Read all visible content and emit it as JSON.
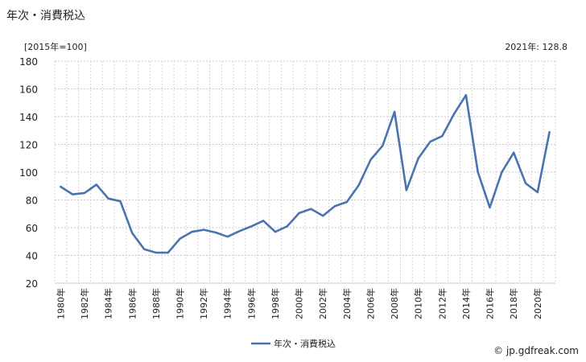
{
  "chart_data": {
    "type": "line",
    "title": "年次・消費税込",
    "unit_label": "[2015年=100]",
    "latest_label": "2021年: 128.8",
    "ylim": [
      20,
      180
    ],
    "yticks": [
      20,
      40,
      60,
      80,
      100,
      120,
      140,
      160,
      180
    ],
    "grid": true,
    "legend_position": "bottom",
    "x": [
      "1980年",
      "1981年",
      "1982年",
      "1983年",
      "1984年",
      "1985年",
      "1986年",
      "1987年",
      "1988年",
      "1989年",
      "1990年",
      "1991年",
      "1992年",
      "1993年",
      "1994年",
      "1995年",
      "1996年",
      "1997年",
      "1998年",
      "1999年",
      "2000年",
      "2001年",
      "2002年",
      "2003年",
      "2004年",
      "2005年",
      "2006年",
      "2007年",
      "2008年",
      "2009年",
      "2010年",
      "2011年",
      "2012年",
      "2013年",
      "2014年",
      "2015年",
      "2016年",
      "2017年",
      "2018年",
      "2019年",
      "2020年",
      "2021年"
    ],
    "xtick_labels": [
      "1980年",
      "1982年",
      "1984年",
      "1986年",
      "1988年",
      "1990年",
      "1992年",
      "1994年",
      "1996年",
      "1998年",
      "2000年",
      "2002年",
      "2004年",
      "2006年",
      "2008年",
      "2010年",
      "2012年",
      "2014年",
      "2016年",
      "2018年",
      "2020年"
    ],
    "series": [
      {
        "name": "年次・消費税込",
        "color": "#4a74b0",
        "values": [
          89.5,
          84,
          85,
          91,
          81,
          79,
          56,
          44.5,
          42,
          42,
          52,
          57,
          58.5,
          56.5,
          53.5,
          57.5,
          61,
          65,
          57,
          61,
          70.5,
          73.5,
          68.5,
          75.5,
          78.5,
          90.5,
          109,
          119,
          143.5,
          87,
          110,
          122,
          126,
          142,
          155.5,
          100,
          74.5,
          100,
          114,
          92,
          85.5,
          128.8
        ]
      }
    ]
  },
  "credit": "© jp.gdfreak.com"
}
